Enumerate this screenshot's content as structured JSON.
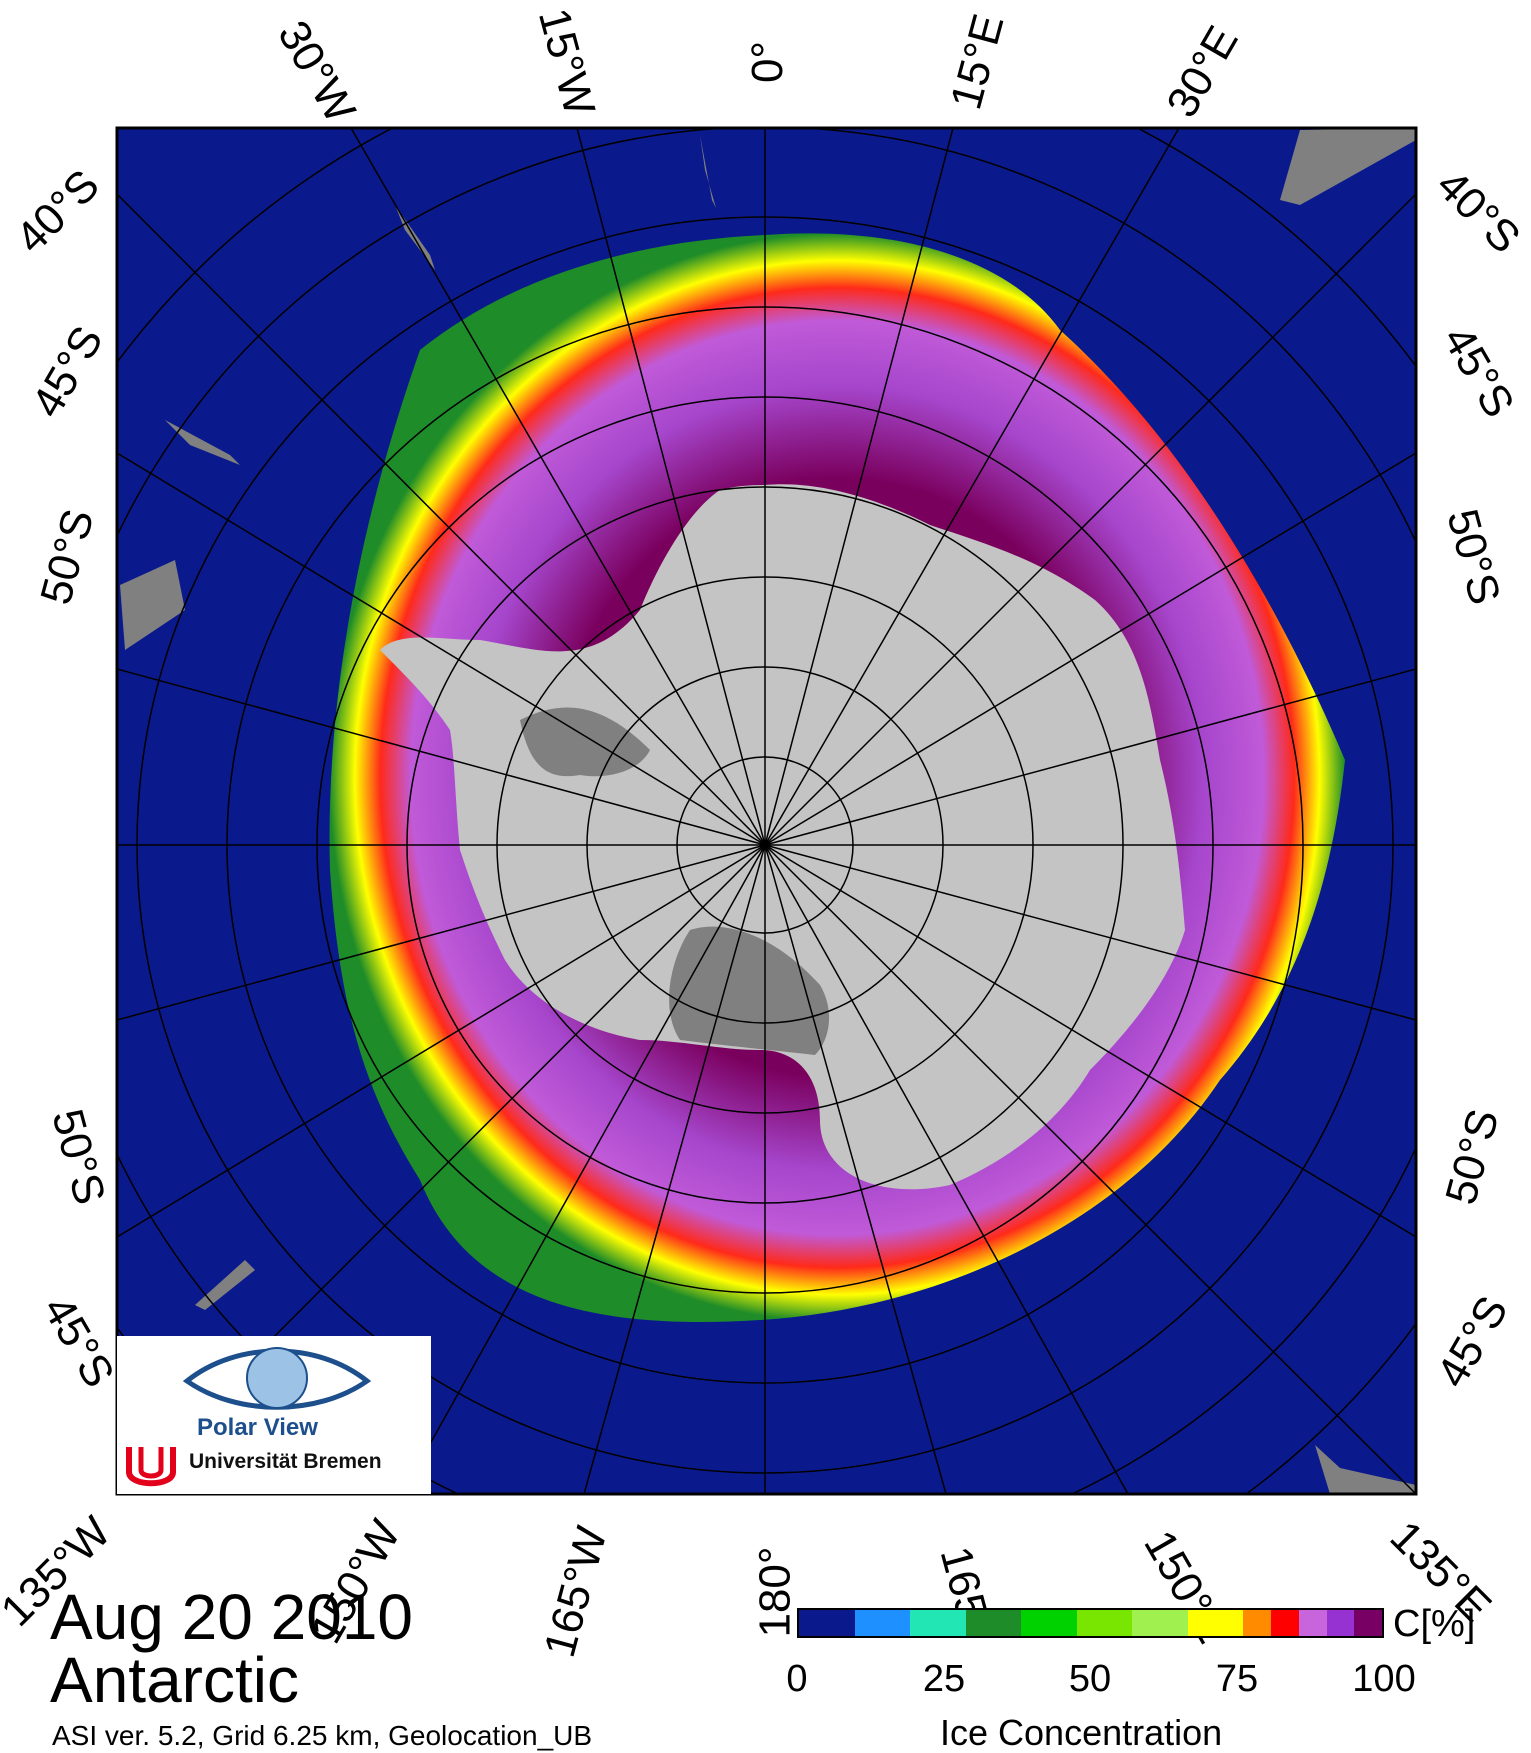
{
  "map": {
    "date": "Aug 20 2010",
    "region": "Antarctic",
    "meta": "ASI ver. 5.2,  Grid 6.25 km, Geolocation_UB",
    "top_labels": [
      "30°W",
      "15°W",
      "0°",
      "15°E",
      "30°E"
    ],
    "bottom_labels": [
      "135°W",
      "150°W",
      "165°W",
      "180°",
      "165°",
      "150°E",
      "135°E"
    ],
    "left_labels": [
      "40°S",
      "45°S",
      "50°S",
      "50°S",
      "45°S"
    ],
    "right_labels": [
      "40°S",
      "45°S",
      "50°S",
      "50°S",
      "45°S"
    ],
    "colors": {
      "ocean": "#0a1a8c",
      "land": "#c4c4c4",
      "ice_shelf": "#808080",
      "grid": "#000000"
    }
  },
  "logo": {
    "title": "Polar View",
    "subtitle": "Universität Bremen"
  },
  "colorbar": {
    "title": "Ice Concentration",
    "unit": "C[%]",
    "ticks": [
      "0",
      "25",
      "50",
      "75",
      "100"
    ],
    "colors": [
      "#0a1a8c",
      "#1e90ff",
      "#22e6b4",
      "#1e8c28",
      "#00d200",
      "#78e600",
      "#a0f050",
      "#ffff00",
      "#ff8c00",
      "#ff0000",
      "#c864dc",
      "#9632d2",
      "#780064"
    ]
  }
}
